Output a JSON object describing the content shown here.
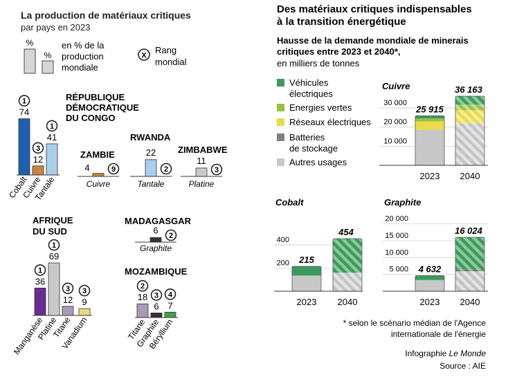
{
  "left": {
    "title": "La production de matériaux critiques",
    "subtitle": "par pays en 2023",
    "legend": {
      "pct_symbol": "%",
      "pct_line1": "en % de la",
      "pct_line2": "production",
      "pct_line3": "mondiale",
      "rank_symbol": "X",
      "rank_line1": "Rang",
      "rank_line2": "mondial"
    },
    "countries": [
      {
        "name": [
          "RÉPUBLIQUE",
          "DÉMOCRATIQUE",
          "DU CONGO"
        ],
        "bars": [
          {
            "label": "Cobalt",
            "value": 74,
            "rank": "1",
            "color": "#1f5fb0"
          },
          {
            "label": "Cuivre",
            "value": 12,
            "rank": "3",
            "color": "#c8853a"
          },
          {
            "label": "Tantale",
            "value": 41,
            "rank": "1",
            "color": "#a9cfee"
          }
        ]
      },
      {
        "name": [
          "ZAMBIE"
        ],
        "bars": [
          {
            "label": "Cuivre",
            "value": 4,
            "rank": "9",
            "color": "#c8853a"
          }
        ]
      },
      {
        "name": [
          "RWANDA"
        ],
        "bars": [
          {
            "label": "Tantale",
            "value": 22,
            "rank": "2",
            "color": "#a9cfee"
          }
        ]
      },
      {
        "name": [
          "ZIMBABWE"
        ],
        "bars": [
          {
            "label": "Platine",
            "value": 11,
            "rank": "3",
            "color": "#c9c9c9"
          }
        ]
      },
      {
        "name": [
          "AFRIQUE",
          "DU SUD"
        ],
        "bars": [
          {
            "label": "Manganèse",
            "value": 36,
            "rank": "1",
            "color": "#6a2d8f"
          },
          {
            "label": "Platine",
            "value": 69,
            "rank": "1",
            "color": "#c9c9c9"
          },
          {
            "label": "Titane",
            "value": 12,
            "rank": "3",
            "color": "#a89bb8"
          },
          {
            "label": "Vanadium",
            "value": 9,
            "rank": "3",
            "color": "#e7dc7c"
          }
        ]
      },
      {
        "name": [
          "MADAGASGAR"
        ],
        "bars": [
          {
            "label": "Graphite",
            "value": 6,
            "rank": "2",
            "color": "#333333"
          }
        ]
      },
      {
        "name": [
          "MOZAMBIQUE"
        ],
        "bars": [
          {
            "label": "Titane",
            "value": 18,
            "rank": "2",
            "color": "#a89bb8"
          },
          {
            "label": "Graphite",
            "value": 6,
            "rank": "3",
            "color": "#333333"
          },
          {
            "label": "Béryllium",
            "value": 7,
            "rank": "4",
            "color": "#3ea34a"
          }
        ]
      }
    ]
  },
  "right": {
    "title_line1": "Des matériaux critiques indispensables",
    "title_line2": "à la transition énergétique",
    "subtitle_line1": "Hausse de la demande mondiale de minerais",
    "subtitle_line2": "critiques entre 2023 et 2040*,",
    "unit": "en milliers de tonnes",
    "legend": [
      {
        "label": [
          "Véhicules",
          "électriques"
        ],
        "color": "#3b9a5e"
      },
      {
        "label": [
          "Energies vertes"
        ],
        "color": "#9bbf45"
      },
      {
        "label": [
          "Réseaux électriques"
        ],
        "color": "#eadb4a"
      },
      {
        "label": [
          "Batteries",
          "de stockage"
        ],
        "color": "#808080"
      },
      {
        "label": [
          "Autres usages"
        ],
        "color": "#c8c8c8"
      }
    ],
    "footnote_line1": "* selon le scénario médian de l'Agence",
    "footnote_line2": "internationale de l'énergie",
    "credit_prefix": "Infographie",
    "credit_brand": "Le Monde",
    "source": "Source : AIE"
  },
  "chart_data": [
    {
      "type": "bar",
      "title": "La production de matériaux critiques par pays en 2023",
      "ylabel": "en % de la production mondiale",
      "series": [
        {
          "name": "République démocratique du Congo",
          "categories": [
            "Cobalt",
            "Cuivre",
            "Tantale"
          ],
          "values": [
            74,
            12,
            41
          ],
          "ranks": [
            1,
            3,
            1
          ]
        },
        {
          "name": "Zambie",
          "categories": [
            "Cuivre"
          ],
          "values": [
            4
          ],
          "ranks": [
            9
          ]
        },
        {
          "name": "Rwanda",
          "categories": [
            "Tantale"
          ],
          "values": [
            22
          ],
          "ranks": [
            2
          ]
        },
        {
          "name": "Zimbabwe",
          "categories": [
            "Platine"
          ],
          "values": [
            11
          ],
          "ranks": [
            3
          ]
        },
        {
          "name": "Afrique du Sud",
          "categories": [
            "Manganèse",
            "Platine",
            "Titane",
            "Vanadium"
          ],
          "values": [
            36,
            69,
            12,
            9
          ],
          "ranks": [
            1,
            1,
            3,
            3
          ]
        },
        {
          "name": "Madagasgar",
          "categories": [
            "Graphite"
          ],
          "values": [
            6
          ],
          "ranks": [
            2
          ]
        },
        {
          "name": "Mozambique",
          "categories": [
            "Titane",
            "Graphite",
            "Béryllium"
          ],
          "values": [
            18,
            6,
            7
          ],
          "ranks": [
            2,
            3,
            4
          ]
        }
      ]
    },
    {
      "type": "bar",
      "stacked": true,
      "title": "Cuivre",
      "categories": [
        "2023",
        "2040"
      ],
      "totals": [
        "25 915",
        "36 163"
      ],
      "ylim": [
        0,
        36163
      ],
      "yticks": [
        10000,
        20000,
        30000
      ],
      "ytick_labels": [
        "10 000",
        "20 000",
        "30 000"
      ],
      "series": [
        {
          "name": "Autres usages",
          "values": [
            18500,
            22000
          ]
        },
        {
          "name": "Batteries de stockage",
          "values": [
            0,
            0
          ]
        },
        {
          "name": "Réseaux électriques",
          "values": [
            4500,
            6800
          ]
        },
        {
          "name": "Energies vertes",
          "values": [
            1500,
            3000
          ]
        },
        {
          "name": "Véhicules électriques",
          "values": [
            1415,
            4363
          ]
        }
      ]
    },
    {
      "type": "bar",
      "stacked": true,
      "title": "Cobalt",
      "categories": [
        "2023",
        "2040"
      ],
      "totals": [
        "215",
        "454"
      ],
      "ylim": [
        0,
        454
      ],
      "yticks": [
        200,
        400
      ],
      "ytick_labels": [
        "200",
        "400"
      ],
      "series": [
        {
          "name": "Autres usages",
          "values": [
            135,
            160
          ]
        },
        {
          "name": "Batteries de stockage",
          "values": [
            0,
            0
          ]
        },
        {
          "name": "Réseaux électriques",
          "values": [
            0,
            0
          ]
        },
        {
          "name": "Energies vertes",
          "values": [
            0,
            0
          ]
        },
        {
          "name": "Véhicules électriques",
          "values": [
            80,
            294
          ]
        }
      ]
    },
    {
      "type": "bar",
      "stacked": true,
      "title": "Graphite",
      "categories": [
        "2023",
        "2040"
      ],
      "totals": [
        "4 632",
        "16 024"
      ],
      "ylim": [
        0,
        20000
      ],
      "yticks": [
        5000,
        10000,
        15000,
        20000
      ],
      "ytick_labels": [
        "5 000",
        "10 000",
        "15 000",
        "20 000"
      ],
      "series": [
        {
          "name": "Autres usages",
          "values": [
            3332,
            5924
          ]
        },
        {
          "name": "Batteries de stockage",
          "values": [
            0,
            500
          ]
        },
        {
          "name": "Réseaux électriques",
          "values": [
            0,
            0
          ]
        },
        {
          "name": "Energies vertes",
          "values": [
            0,
            0
          ]
        },
        {
          "name": "Véhicules électriques",
          "values": [
            1300,
            9600
          ]
        }
      ]
    }
  ]
}
